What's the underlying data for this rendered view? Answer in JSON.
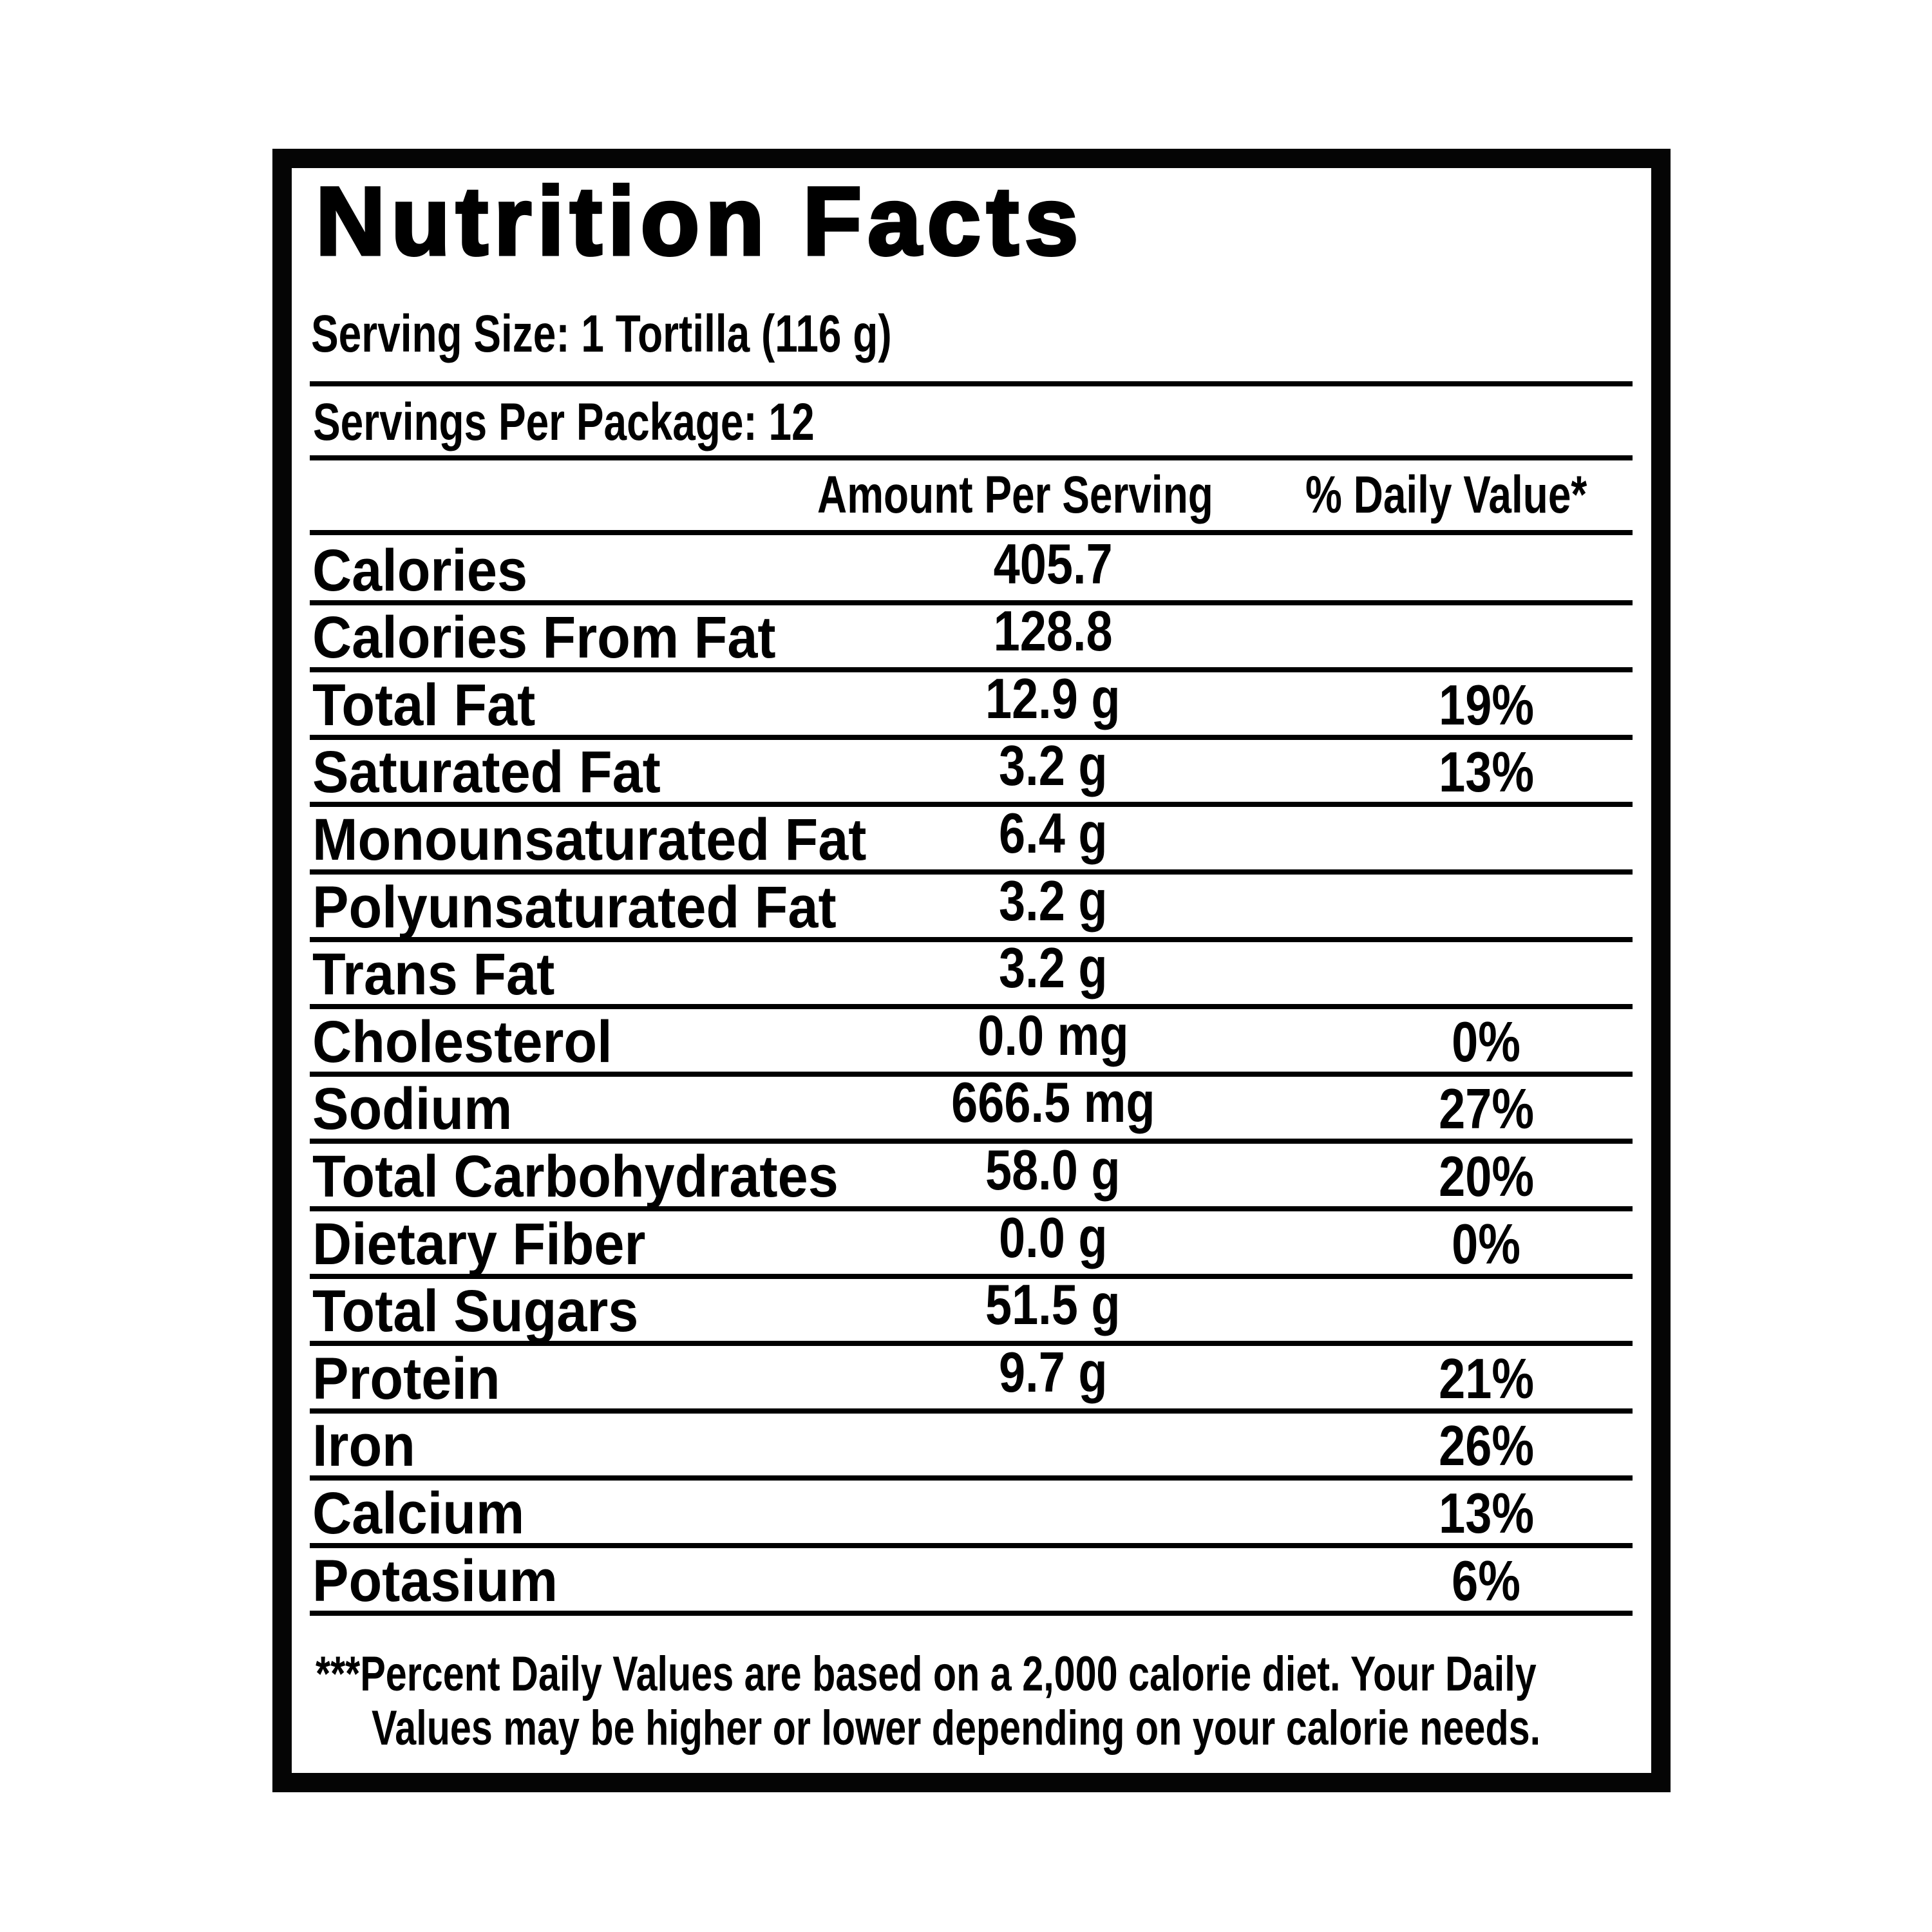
{
  "title": "Nutrition Facts",
  "serving_size": "Serving Size: 1 Tortilla (116 g)",
  "servings_per_package": "Servings Per Package: 12",
  "columns": {
    "amount": "Amount Per Serving",
    "daily_value": "% Daily Value*"
  },
  "rows": [
    {
      "label": "Calories",
      "amount": "405.7",
      "dv": ""
    },
    {
      "label": "Calories From Fat",
      "amount": "128.8",
      "dv": ""
    },
    {
      "label": "Total Fat",
      "amount": "12.9 g",
      "dv": "19%"
    },
    {
      "label": "Saturated Fat",
      "amount": "3.2 g",
      "dv": "13%"
    },
    {
      "label": "Monounsaturated Fat",
      "amount": "6.4 g",
      "dv": ""
    },
    {
      "label": "Polyunsaturated Fat",
      "amount": "3.2 g",
      "dv": ""
    },
    {
      "label": "Trans Fat",
      "amount": "3.2 g",
      "dv": ""
    },
    {
      "label": "Cholesterol",
      "amount": "0.0 mg",
      "dv": "0%"
    },
    {
      "label": "Sodium",
      "amount": "666.5 mg",
      "dv": "27%"
    },
    {
      "label": "Total Carbohydrates",
      "amount": "58.0 g",
      "dv": "20%"
    },
    {
      "label": "Dietary Fiber",
      "amount": "0.0 g",
      "dv": "0%"
    },
    {
      "label": "Total Sugars",
      "amount": "51.5 g",
      "dv": ""
    },
    {
      "label": "Protein",
      "amount": "9.7 g",
      "dv": "21%"
    },
    {
      "label": "Iron",
      "amount": "",
      "dv": "26%"
    },
    {
      "label": "Calcium",
      "amount": "",
      "dv": "13%"
    },
    {
      "label": "Potasium",
      "amount": "",
      "dv": "6%"
    }
  ],
  "footnote": {
    "line1": "***Percent Daily Values are based on a 2,000 calorie diet. Your Daily",
    "line2": "Values may be higher or lower depending on your calorie needs."
  }
}
